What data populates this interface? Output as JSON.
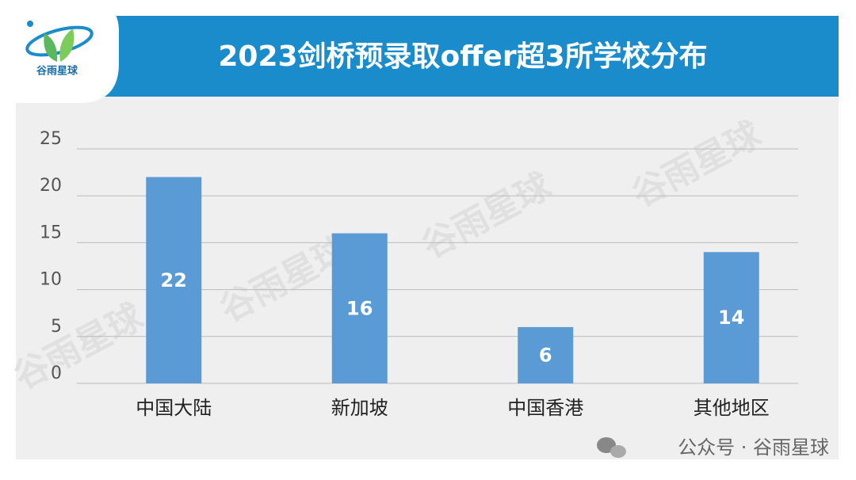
{
  "chart_data": {
    "type": "bar",
    "title": "2023剑桥预录取offer超3所学校分布",
    "categories": [
      "中国大陆",
      "新加坡",
      "中国香港",
      "其他地区"
    ],
    "values": [
      22,
      16,
      6,
      14
    ],
    "color": "#5b9bd5",
    "ylim": [
      0,
      25
    ],
    "yticks": [
      0,
      5,
      10,
      15,
      20,
      25
    ],
    "grid": true
  },
  "logo_text": "谷雨星球",
  "watermark": "谷雨星球",
  "footer": "公众号 · 谷雨星球"
}
